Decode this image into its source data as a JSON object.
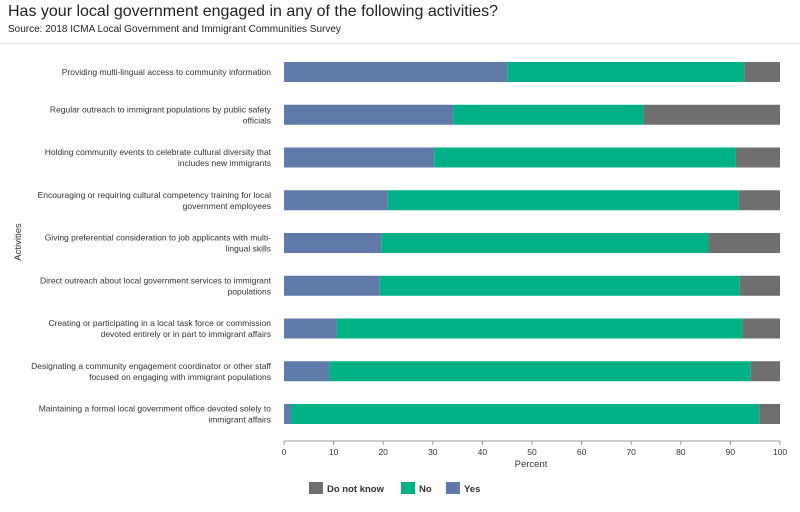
{
  "title": "Has your local government engaged in any of the following activities?",
  "subtitle": "Source: 2018 ICMA Local Government and Immigrant Communities Survey",
  "chart_data": {
    "type": "bar",
    "orientation": "horizontal",
    "stacked": true,
    "xlabel": "Percent",
    "ylabel": "Activities",
    "xlim": [
      0,
      100
    ],
    "xticks": [
      0,
      10,
      20,
      30,
      40,
      50,
      60,
      70,
      80,
      90,
      100
    ],
    "grid": false,
    "legend_position": "bottom",
    "categories": [
      "Providing multi-lingual access to community information",
      "Regular outreach to immigrant populations by public safety officials",
      "Holding community events to celebrate cultural diversity that includes new immigrants",
      "Encouraging or requiring cultural competency training for local government employees",
      "Giving preferential consideration to job applicants with multi-lingual skills",
      "Direct outreach about local government services to immigrant populations",
      "Creating or participating in a local task force or commission devoted entirely or in part to immigrant affairs",
      "Designating a community engagement coordinator or other staff focused on engaging with immigrant populations",
      "Maintaining a formal local government office devoted solely to immigrant affairs"
    ],
    "category_lines": [
      [
        "Providing multi-lingual access to community information"
      ],
      [
        "Regular outreach to immigrant populations by public safety",
        "officials"
      ],
      [
        "Holding community events to celebrate cultural diversity that",
        "includes new immigrants"
      ],
      [
        "Encouraging or requiring cultural competency training for local",
        "government employees"
      ],
      [
        "Giving preferential consideration to job applicants with multi-",
        "lingual skills"
      ],
      [
        "Direct outreach about local government services to immigrant",
        "populations"
      ],
      [
        "Creating or participating in a local task force or commission",
        "devoted entirely or in part to immigrant affairs"
      ],
      [
        "Designating a community engagement coordinator or other staff",
        "focused on engaging with immigrant populations"
      ],
      [
        "Maintaining a formal local government office devoted solely to",
        "immigrant affairs"
      ]
    ],
    "series": [
      {
        "name": "Yes",
        "color": "#5f79a8",
        "values": [
          45.0,
          34.1,
          30.3,
          20.9,
          19.6,
          19.3,
          10.6,
          9.1,
          1.4
        ]
      },
      {
        "name": "No",
        "color": "#00b185",
        "values": [
          47.8,
          38.4,
          60.8,
          70.8,
          66.0,
          72.6,
          81.8,
          85.0,
          94.4
        ]
      },
      {
        "name": "Do not know",
        "color": "#6f6f6f",
        "values": [
          7.2,
          27.5,
          8.9,
          8.3,
          14.4,
          8.1,
          7.6,
          5.9,
          4.2
        ]
      }
    ],
    "legend_order": [
      "Do not know",
      "No",
      "Yes"
    ]
  }
}
